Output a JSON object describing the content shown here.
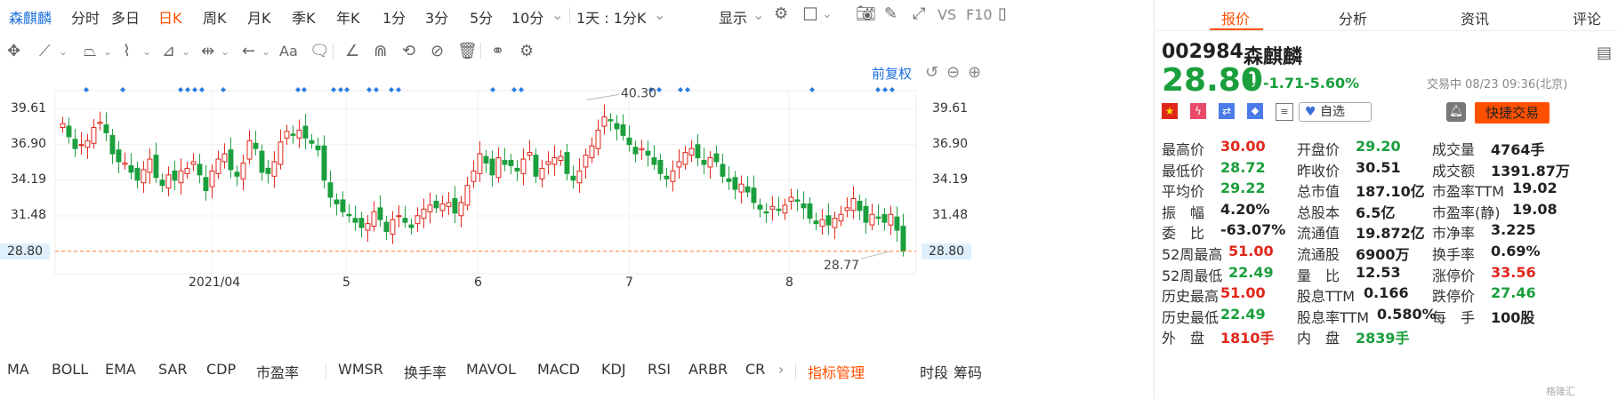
{
  "toolbar": {
    "stock_name": "森麒麟",
    "periods": [
      "分时",
      "多日",
      "日K",
      "周K",
      "月K",
      "季K",
      "年K",
      "1分",
      "3分",
      "5分",
      "10分"
    ],
    "active_period": "日K",
    "range_select": "1天 : 1分K",
    "display_label": "显示",
    "vs_label": "VS",
    "f10_label": "F10"
  },
  "drawbar": {
    "font_tool": "Aa"
  },
  "chart": {
    "adjust_label": "前复权",
    "max_label": "40.30",
    "min_label": "28.77",
    "current_price_label": "28.80"
  },
  "chart_data": {
    "type": "candlestick",
    "y_ticks": [
      "39.61",
      "36.90",
      "34.19",
      "31.48",
      "28.80"
    ],
    "x_ticks": [
      "2021/04",
      "5",
      "6",
      "7",
      "8"
    ],
    "ylim": [
      27.5,
      41.0
    ],
    "high_marker": 40.3,
    "low_marker": 28.77,
    "last": 28.8
  },
  "indicators": {
    "items": [
      "MA",
      "BOLL",
      "EMA",
      "SAR",
      "CDP",
      "市盈率",
      "WMSR",
      "换手率",
      "MAVOL",
      "MACD",
      "KDJ",
      "RSI",
      "ARBR",
      "CR"
    ],
    "manager_label": "指标管理",
    "right_a": "时段",
    "right_b": "筹码"
  },
  "panel": {
    "tabs": [
      "报价",
      "分析",
      "资讯",
      "评论"
    ],
    "active_tab": "报价",
    "code": "002984",
    "name": "森麒麟",
    "price": "28.80",
    "change": "-1.71",
    "change_pct": "-5.60%",
    "status": "交易中 08/23 09:36(北京)",
    "watch_label": "自选",
    "trade_button": "快捷交易",
    "colors": {
      "up": "#e0261b",
      "down": "#1a9f3c",
      "accent": "#ff5000"
    },
    "stats": [
      [
        [
          "最高价",
          "30.00",
          "red"
        ],
        [
          "开盘价",
          "29.20",
          "green"
        ],
        [
          "成交量",
          "4764手",
          ""
        ]
      ],
      [
        [
          "最低价",
          "28.72",
          "green"
        ],
        [
          "昨收价",
          "30.51",
          ""
        ],
        [
          "成交额",
          "1391.87万",
          ""
        ]
      ],
      [
        [
          "平均价",
          "29.22",
          "green"
        ],
        [
          "总市值",
          "187.10亿",
          ""
        ],
        [
          "市盈率TTM",
          "19.02",
          ""
        ]
      ],
      [
        [
          "振　幅",
          "4.20%",
          ""
        ],
        [
          "总股本",
          "6.5亿",
          ""
        ],
        [
          "市盈率(静)",
          "19.08",
          ""
        ]
      ],
      [
        [
          "委　比",
          "-63.07%",
          ""
        ],
        [
          "流通值",
          "19.872亿",
          ""
        ],
        [
          "市净率",
          "3.225",
          ""
        ]
      ],
      [
        [
          "52周最高",
          "51.00",
          "red"
        ],
        [
          "流通股",
          "6900万",
          ""
        ],
        [
          "换手率",
          "0.69%",
          ""
        ]
      ],
      [
        [
          "52周最低",
          "22.49",
          "green"
        ],
        [
          "量　比",
          "12.53",
          ""
        ],
        [
          "涨停价",
          "33.56",
          "red"
        ]
      ],
      [
        [
          "历史最高",
          "51.00",
          "red"
        ],
        [
          "股息TTM",
          "0.166",
          ""
        ],
        [
          "跌停价",
          "27.46",
          "green"
        ]
      ],
      [
        [
          "历史最低",
          "22.49",
          "green"
        ],
        [
          "股息率TTM",
          "0.580%",
          ""
        ],
        [
          "每　手",
          "100股",
          ""
        ]
      ],
      [
        [
          "外　盘",
          "1810手",
          "red"
        ],
        [
          "内　盘",
          "2839手",
          "green"
        ],
        [
          "",
          "",
          " "
        ]
      ]
    ],
    "watermark": "格隆汇"
  }
}
